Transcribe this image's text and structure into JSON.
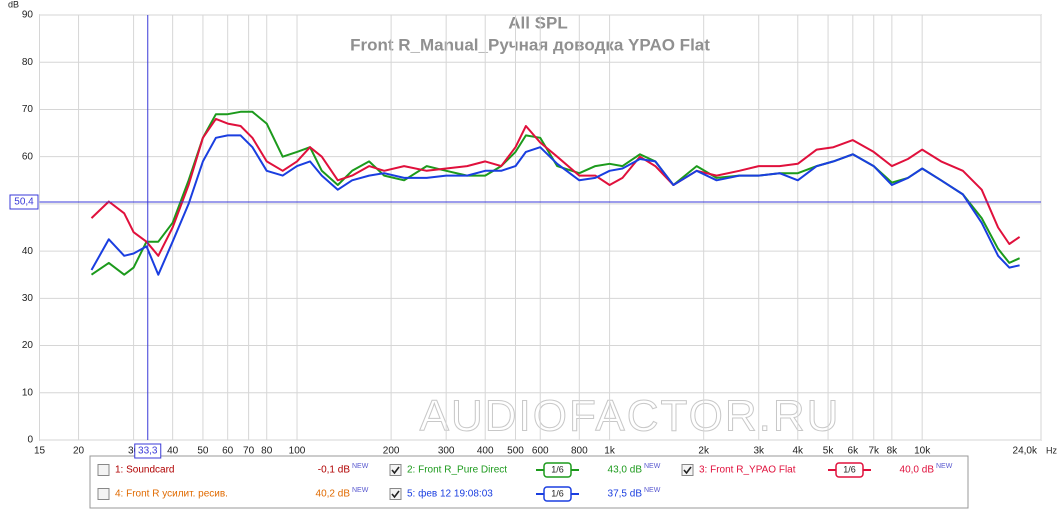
{
  "chart_data": {
    "type": "line",
    "title": "All SPL",
    "subtitle": "Front R_Manual_Ручная доводка YPAO Flat",
    "y_label": "dB",
    "x_label": "Hz",
    "log_x": true,
    "grid": true,
    "xlim": [
      15,
      24000
    ],
    "ylim": [
      0,
      90
    ],
    "yticks": [
      0,
      10,
      20,
      30,
      40,
      50,
      60,
      70,
      80,
      90
    ],
    "xticks": [
      15,
      20,
      30,
      40,
      50,
      60,
      70,
      80,
      100,
      200,
      300,
      400,
      500,
      600,
      800,
      {
        "value": 1000,
        "label": "1k"
      },
      {
        "value": 2000,
        "label": "2k"
      },
      {
        "value": 3000,
        "label": "3k"
      },
      {
        "value": 4000,
        "label": "4k"
      },
      {
        "value": 5000,
        "label": "5k"
      },
      {
        "value": 6000,
        "label": "6k"
      },
      {
        "value": 7000,
        "label": "7k"
      },
      {
        "value": 8000,
        "label": "8k"
      },
      {
        "value": 10000,
        "label": "10k"
      },
      {
        "value": 24000,
        "label": "24,0k"
      }
    ],
    "cursor": {
      "x": {
        "value": 33.3,
        "label": "33,3"
      },
      "y": {
        "value": 50.4,
        "label": "50,4"
      },
      "color": "#3a3ad8"
    },
    "watermark": "AUDIOFACTOR.RU",
    "x": [
      22,
      25,
      28,
      30,
      33,
      36,
      40,
      45,
      50,
      55,
      60,
      66,
      72,
      80,
      90,
      100,
      110,
      120,
      135,
      150,
      170,
      190,
      220,
      260,
      300,
      350,
      400,
      450,
      500,
      540,
      600,
      680,
      800,
      900,
      1000,
      1100,
      1250,
      1400,
      1600,
      1900,
      2200,
      2600,
      3000,
      3500,
      4000,
      4600,
      5200,
      6000,
      7000,
      8000,
      9000,
      10000,
      11500,
      13500,
      15500,
      17500,
      19000,
      20500
    ],
    "series": [
      {
        "name": "2: Front R_Pure Direct",
        "color": "#1c9a1c",
        "values": [
          35,
          37.5,
          35,
          36.5,
          42,
          42,
          46,
          55,
          64,
          69,
          69,
          69.5,
          69.5,
          67,
          60,
          61,
          62,
          57,
          54,
          57,
          59,
          56,
          55,
          58,
          57,
          56,
          56,
          58,
          61,
          64.5,
          64,
          58,
          56.5,
          58,
          58.5,
          58,
          60.5,
          59,
          54,
          58,
          55.5,
          56,
          56,
          56.5,
          56.5,
          58,
          59,
          60.5,
          58,
          54.5,
          55.5,
          57.5,
          55,
          52,
          47,
          40.5,
          37.5,
          38.5
        ]
      },
      {
        "name": "3: Front R_YPAO Flat",
        "color": "#e0103c",
        "values": [
          47,
          50.5,
          48,
          44,
          42,
          39,
          45,
          54,
          64,
          68,
          67,
          66.5,
          64,
          59,
          57,
          59,
          62,
          60,
          55,
          56,
          58,
          57,
          58,
          57,
          57.5,
          58,
          59,
          58,
          62,
          66.5,
          63,
          60,
          56,
          56,
          54,
          55.5,
          60,
          58,
          54,
          57,
          56,
          57,
          58,
          58,
          58.5,
          61.5,
          62,
          63.5,
          61,
          58,
          59.5,
          61.5,
          59,
          57,
          53,
          45,
          41.5,
          43
        ]
      },
      {
        "name": "5: фев 12 19:08:03",
        "color": "#1a3ee0",
        "values": [
          36,
          42.5,
          39,
          39.5,
          41,
          35,
          42,
          50,
          59,
          64,
          64.5,
          64.5,
          62,
          57,
          56,
          58,
          59,
          56,
          53,
          55,
          56,
          56.5,
          55.5,
          55.5,
          56,
          56,
          57,
          57,
          58,
          61,
          62,
          58.5,
          55,
          55.5,
          57,
          57.5,
          59.5,
          59,
          54,
          57,
          55,
          56,
          56,
          56.5,
          55,
          58,
          59,
          60.5,
          58,
          54,
          55.5,
          57.5,
          55,
          52,
          46,
          39,
          36.5,
          37
        ]
      }
    ]
  },
  "legend": [
    {
      "label": "1: Soundcard",
      "color": "#b00000",
      "checked": false,
      "level": "-0,1 dB",
      "tag": "NEW"
    },
    {
      "label": "2: Front R_Pure Direct",
      "color": "#1c9a1c",
      "checked": true,
      "smoothing": "1/6",
      "level": "43,0 dB",
      "tag": "NEW"
    },
    {
      "label": "3: Front R_YPAO Flat",
      "color": "#e0103c",
      "checked": true,
      "smoothing": "1/6",
      "level": "40,0 dB",
      "tag": "NEW"
    },
    {
      "label": "4: Front R усилит. ресив.",
      "color": "#e06a00",
      "checked": false,
      "level": "40,2 dB",
      "tag": "NEW"
    },
    {
      "label": "5: фев 12 19:08:03",
      "color": "#1a3ee0",
      "checked": true,
      "smoothing": "1/6",
      "level": "37,5 dB",
      "tag": "NEW"
    }
  ]
}
